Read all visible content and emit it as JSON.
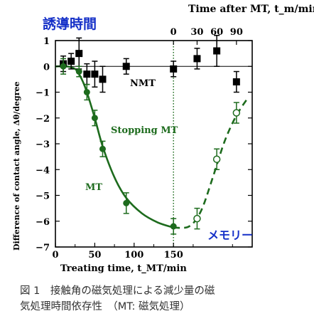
{
  "chart_data": {
    "type": "scatter",
    "xlabel": "Treating time, t_MT/min",
    "ylabel": "Difference of contact angle, Δθ/degree",
    "top_axis_label": "Time after MT, t_m/min",
    "xlim": [
      0,
      250
    ],
    "ylim": [
      -7,
      1
    ],
    "x_ticks": [
      0,
      50,
      100,
      150
    ],
    "y_ticks": [
      1,
      0,
      -1,
      -2,
      -3,
      -4,
      -5,
      -6,
      -7
    ],
    "top_ticks": [
      {
        "label": "0",
        "x": 150
      },
      {
        "label": "30",
        "x": 180
      },
      {
        "label": "60",
        "x": 205
      },
      {
        "label": "90",
        "x": 230
      }
    ],
    "stop_line_x": 150,
    "series": [
      {
        "name": "NMT",
        "color": "#000000",
        "marker": "square",
        "points": [
          {
            "x": 10,
            "y": 0.1,
            "err": 0.3
          },
          {
            "x": 20,
            "y": 0.2,
            "err": 0.3
          },
          {
            "x": 30,
            "y": 0.5,
            "err": 0.6
          },
          {
            "x": 40,
            "y": -0.3,
            "err": 0.4
          },
          {
            "x": 50,
            "y": -0.3,
            "err": 0.5
          },
          {
            "x": 60,
            "y": -0.5,
            "err": 0.5
          },
          {
            "x": 90,
            "y": 0.0,
            "err": 0.3
          },
          {
            "x": 150,
            "y": -0.1,
            "err": 0.3
          },
          {
            "x": 180,
            "y": 0.3,
            "err": 0.4
          },
          {
            "x": 205,
            "y": 0.6,
            "err": 0.6
          },
          {
            "x": 230,
            "y": -0.6,
            "err": 0.4
          }
        ]
      },
      {
        "name": "MT",
        "color": "#1d6b1d",
        "marker": "filled-circle",
        "points": [
          {
            "x": 10,
            "y": 0.0,
            "err": 0.3
          },
          {
            "x": 30,
            "y": -0.2,
            "err": 0.2
          },
          {
            "x": 40,
            "y": -1.0,
            "err": 0.3
          },
          {
            "x": 50,
            "y": -2.0,
            "err": 0.3
          },
          {
            "x": 60,
            "y": -3.2,
            "err": 0.3
          },
          {
            "x": 90,
            "y": -5.3,
            "err": 0.4
          },
          {
            "x": 150,
            "y": -6.2,
            "err": 0.3
          }
        ]
      },
      {
        "name": "Stopping MT",
        "color": "#1d6b1d",
        "marker": "open-circle",
        "points": [
          {
            "x": 180,
            "y": -5.9,
            "err": 0.4
          },
          {
            "x": 205,
            "y": -3.6,
            "err": 0.4
          },
          {
            "x": 230,
            "y": -1.8,
            "err": 0.4
          }
        ]
      }
    ],
    "fit_solid": [
      [
        0,
        0
      ],
      [
        15,
        0
      ],
      [
        25,
        -0.1
      ],
      [
        30,
        -0.3
      ],
      [
        35,
        -0.6
      ],
      [
        40,
        -1.0
      ],
      [
        50,
        -2.0
      ],
      [
        60,
        -3.1
      ],
      [
        75,
        -4.3
      ],
      [
        90,
        -5.1
      ],
      [
        110,
        -5.7
      ],
      [
        130,
        -6.05
      ],
      [
        150,
        -6.25
      ]
    ],
    "fit_dashed": [
      [
        150,
        -6.25
      ],
      [
        170,
        -6.2
      ],
      [
        185,
        -5.6
      ],
      [
        200,
        -4.3
      ],
      [
        215,
        -2.9
      ],
      [
        230,
        -1.9
      ],
      [
        245,
        -1.2
      ]
    ],
    "annotations": {
      "induction_time": "誘導時間",
      "memory": "メモリー",
      "nmt": "NMT",
      "mt": "MT",
      "stopping": "Stopping MT"
    }
  },
  "caption": {
    "line1": "図 1　接触角の磁気処理による減少量の磁",
    "line2": "気処理時間依存性　（MT:  磁気処理）"
  }
}
